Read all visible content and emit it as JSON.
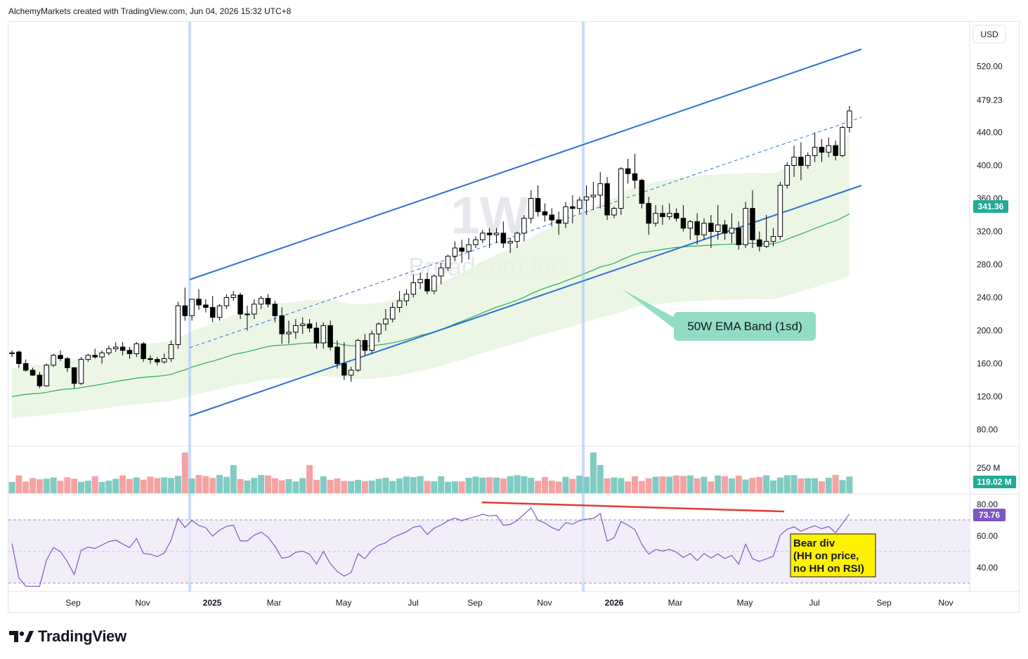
{
  "header": {
    "attribution": "AlchemyMarkets created with TradingView.com, Jun 04, 2026 15:32 UTC+8"
  },
  "footer": {
    "brand": "TradingView"
  },
  "watermark": {
    "interval": "1W",
    "symbol_name": "Broadcom Inc."
  },
  "price_axis": {
    "currency": "USD",
    "ticks": [
      "520.00",
      "479.23",
      "440.00",
      "400.00",
      "360.00",
      "320.00",
      "280.00",
      "240.00",
      "200.00",
      "160.00",
      "120.00",
      "80.00"
    ],
    "last_price_label": "341.36",
    "last_price_color": "#22ab94"
  },
  "volume_axis": {
    "tick": "250 M",
    "last_label": "119.02 M",
    "last_label_color": "#22ab94"
  },
  "rsi_axis": {
    "ticks": [
      "80.00",
      "60.00",
      "40.00"
    ],
    "last_label": "73.76",
    "last_label_color": "#7e57c2"
  },
  "time_axis": {
    "labels": [
      {
        "text": "Sep",
        "bold": false
      },
      {
        "text": "Nov",
        "bold": false
      },
      {
        "text": "2025",
        "bold": true
      },
      {
        "text": "Mar",
        "bold": false
      },
      {
        "text": "May",
        "bold": false
      },
      {
        "text": "Jul",
        "bold": false
      },
      {
        "text": "Sep",
        "bold": false
      },
      {
        "text": "Nov",
        "bold": false
      },
      {
        "text": "2026",
        "bold": true
      },
      {
        "text": "Mar",
        "bold": false
      },
      {
        "text": "May",
        "bold": false
      },
      {
        "text": "Jul",
        "bold": false
      },
      {
        "text": "Sep",
        "bold": false
      },
      {
        "text": "Nov",
        "bold": false
      }
    ]
  },
  "annotations": {
    "ema_band_label": "50W EMA Band (1sd)",
    "bear_div_label": [
      "Bear div",
      "(HH on price,",
      "no HH on RSI)"
    ]
  },
  "colors": {
    "up": "#ffffff",
    "down": "#000000",
    "channel": "#2f6fd6",
    "ema": "#22b14c",
    "band": "#e8f5e0",
    "rsi": "#7e57c2",
    "vol_up": "#80cbc4",
    "vol_down": "#f4a3a3",
    "div_line": "#e53935",
    "callout_green": "#93dcc4",
    "callout_yellow": "#fff200"
  },
  "chart_data": {
    "type": "candlestick",
    "interval": "1W",
    "ylim": [
      60,
      540
    ],
    "candles_ohlc": [
      [
        172,
        176,
        168,
        173
      ],
      [
        174,
        176,
        155,
        160
      ],
      [
        160,
        165,
        150,
        152
      ],
      [
        152,
        155,
        145,
        146
      ],
      [
        146,
        150,
        130,
        133
      ],
      [
        133,
        160,
        132,
        158
      ],
      [
        158,
        172,
        156,
        170
      ],
      [
        170,
        176,
        163,
        166
      ],
      [
        166,
        168,
        150,
        155
      ],
      [
        155,
        155,
        130,
        136
      ],
      [
        136,
        168,
        134,
        165
      ],
      [
        165,
        172,
        162,
        170
      ],
      [
        170,
        178,
        166,
        168
      ],
      [
        168,
        176,
        160,
        173
      ],
      [
        173,
        182,
        170,
        178
      ],
      [
        178,
        186,
        174,
        180
      ],
      [
        180,
        186,
        170,
        176
      ],
      [
        176,
        180,
        166,
        172
      ],
      [
        172,
        186,
        168,
        184
      ],
      [
        184,
        186,
        162,
        166
      ],
      [
        166,
        170,
        160,
        165
      ],
      [
        165,
        168,
        158,
        162
      ],
      [
        162,
        172,
        160,
        166
      ],
      [
        166,
        188,
        162,
        183
      ],
      [
        183,
        235,
        178,
        230
      ],
      [
        230,
        252,
        212,
        218
      ],
      [
        218,
        238,
        212,
        238
      ],
      [
        238,
        250,
        225,
        231
      ],
      [
        231,
        238,
        222,
        228
      ],
      [
        228,
        242,
        210,
        216
      ],
      [
        216,
        232,
        212,
        230
      ],
      [
        230,
        244,
        226,
        240
      ],
      [
        240,
        248,
        236,
        243
      ],
      [
        243,
        246,
        214,
        220
      ],
      [
        220,
        230,
        200,
        220
      ],
      [
        220,
        238,
        214,
        232
      ],
      [
        232,
        242,
        226,
        239
      ],
      [
        239,
        244,
        228,
        232
      ],
      [
        232,
        236,
        210,
        218
      ],
      [
        218,
        228,
        184,
        196
      ],
      [
        196,
        212,
        184,
        198
      ],
      [
        198,
        214,
        190,
        206
      ],
      [
        206,
        216,
        196,
        208
      ],
      [
        208,
        214,
        198,
        203
      ],
      [
        203,
        210,
        178,
        185
      ],
      [
        185,
        210,
        178,
        206
      ],
      [
        206,
        212,
        176,
        180
      ],
      [
        180,
        188,
        154,
        160
      ],
      [
        160,
        186,
        140,
        146
      ],
      [
        146,
        156,
        138,
        152
      ],
      [
        152,
        190,
        150,
        188
      ],
      [
        188,
        196,
        170,
        176
      ],
      [
        176,
        200,
        172,
        196
      ],
      [
        196,
        210,
        186,
        208
      ],
      [
        208,
        226,
        200,
        214
      ],
      [
        214,
        234,
        210,
        228
      ],
      [
        228,
        248,
        222,
        236
      ],
      [
        236,
        250,
        230,
        244
      ],
      [
        244,
        268,
        240,
        258
      ],
      [
        258,
        270,
        250,
        262
      ],
      [
        262,
        270,
        244,
        248
      ],
      [
        248,
        268,
        244,
        266
      ],
      [
        266,
        282,
        256,
        276
      ],
      [
        276,
        292,
        272,
        290
      ],
      [
        290,
        308,
        284,
        300
      ],
      [
        300,
        310,
        282,
        296
      ],
      [
        296,
        312,
        286,
        304
      ],
      [
        304,
        314,
        300,
        310
      ],
      [
        310,
        322,
        306,
        318
      ],
      [
        318,
        324,
        300,
        316
      ],
      [
        316,
        324,
        306,
        318
      ],
      [
        318,
        332,
        300,
        306
      ],
      [
        306,
        312,
        294,
        308
      ],
      [
        308,
        320,
        300,
        318
      ],
      [
        318,
        340,
        308,
        336
      ],
      [
        336,
        370,
        330,
        360
      ],
      [
        360,
        376,
        338,
        344
      ],
      [
        344,
        354,
        332,
        340
      ],
      [
        340,
        348,
        326,
        334
      ],
      [
        334,
        344,
        316,
        330
      ],
      [
        330,
        356,
        324,
        350
      ],
      [
        350,
        364,
        330,
        348
      ],
      [
        348,
        362,
        342,
        358
      ],
      [
        358,
        376,
        340,
        362
      ],
      [
        362,
        380,
        346,
        364
      ],
      [
        364,
        392,
        348,
        378
      ],
      [
        378,
        386,
        334,
        340
      ],
      [
        340,
        350,
        336,
        348
      ],
      [
        348,
        398,
        340,
        396
      ],
      [
        396,
        408,
        378,
        390
      ],
      [
        390,
        414,
        372,
        382
      ],
      [
        382,
        384,
        348,
        354
      ],
      [
        354,
        362,
        316,
        330
      ],
      [
        330,
        352,
        326,
        342
      ],
      [
        342,
        352,
        328,
        338
      ],
      [
        338,
        354,
        334,
        342
      ],
      [
        342,
        348,
        332,
        336
      ],
      [
        336,
        352,
        320,
        324
      ],
      [
        324,
        334,
        310,
        332
      ],
      [
        332,
        342,
        304,
        316
      ],
      [
        316,
        336,
        310,
        330
      ],
      [
        330,
        340,
        300,
        320
      ],
      [
        320,
        352,
        310,
        328
      ],
      [
        328,
        334,
        310,
        318
      ],
      [
        318,
        342,
        306,
        324
      ],
      [
        324,
        332,
        298,
        304
      ],
      [
        304,
        356,
        300,
        348
      ],
      [
        348,
        370,
        300,
        310
      ],
      [
        310,
        320,
        296,
        302
      ],
      [
        302,
        340,
        300,
        308
      ],
      [
        308,
        324,
        302,
        314
      ],
      [
        314,
        380,
        310,
        376
      ],
      [
        376,
        404,
        372,
        400
      ],
      [
        400,
        424,
        386,
        410
      ],
      [
        410,
        428,
        382,
        400
      ],
      [
        400,
        416,
        396,
        412
      ],
      [
        412,
        440,
        404,
        422
      ],
      [
        422,
        432,
        404,
        416
      ],
      [
        416,
        434,
        410,
        424
      ],
      [
        424,
        430,
        406,
        412
      ],
      [
        412,
        448,
        410,
        446
      ],
      [
        446,
        472,
        440,
        466
      ]
    ],
    "ema50_start": 120,
    "ema50_end": 341.36,
    "volume_last": "119.02 M",
    "rsi_last": 73.76,
    "rsi_levels": [
      70,
      50,
      30
    ]
  }
}
